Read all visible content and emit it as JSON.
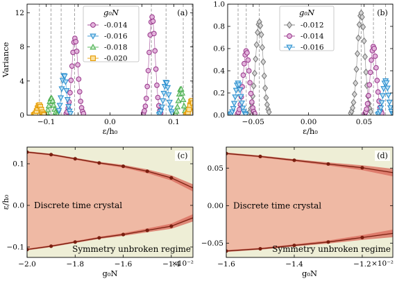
{
  "chart_data": [
    {
      "panel": "(a)",
      "type": "scatter",
      "xlabel": "ε/h₀",
      "ylabel": "Variance",
      "xlim": [
        -0.13,
        0.13
      ],
      "ylim": [
        0,
        13
      ],
      "xticks": [
        -0.1,
        -0.05,
        0.0,
        0.05,
        0.1
      ],
      "xticklabels": [
        "−0.1",
        "",
        "0.0",
        "",
        "0.1"
      ],
      "yticks": [
        0,
        4,
        8,
        12
      ],
      "yticklabels": [
        "0",
        "4",
        "8",
        "12"
      ],
      "legend": {
        "title": "g₀N",
        "placement": "top-center"
      },
      "vlines": [
        -0.1106,
        -0.0926,
        -0.0766,
        -0.0556,
        0.0648,
        0.0878,
        0.1148,
        0.1288
      ],
      "series": [
        {
          "name": "-0.014",
          "marker": "circle",
          "color": "#9b3d8e",
          "fill": "#e3b4dc",
          "center": 0.055,
          "amp": 9.0,
          "width": 0.0055,
          "mirror_center": 0.066,
          "mirror_amp": 11.5
        },
        {
          "name": "-0.016",
          "marker": "triangle-down",
          "color": "#2a8fcf",
          "fill": "#bfe2f6",
          "center": 0.072,
          "amp": 4.7,
          "width": 0.0045,
          "mirror_center": 0.088,
          "mirror_amp": 3.9
        },
        {
          "name": "-0.018",
          "marker": "triangle-up",
          "color": "#4caf50",
          "fill": "#c6ecc8",
          "center": 0.092,
          "amp": 2.0,
          "width": 0.004,
          "mirror_center": 0.111,
          "mirror_amp": 3.1
        },
        {
          "name": "-0.020",
          "marker": "square",
          "color": "#e69b00",
          "fill": "#fbe19f",
          "center": 0.111,
          "amp": 1.2,
          "width": 0.0035,
          "mirror_center": 0.128,
          "mirror_amp": 1.7
        }
      ],
      "label": "(a)"
    },
    {
      "panel": "(b)",
      "type": "scatter",
      "xlabel": "ε/h₀",
      "ylabel": "",
      "xlim": [
        -0.073,
        0.076
      ],
      "ylim": [
        0,
        1.0
      ],
      "xticks": [
        -0.05,
        0.0,
        0.05
      ],
      "xticklabels": [
        "−0.05",
        "0.00",
        "0.05"
      ],
      "yticks": [
        0,
        0.2,
        0.4,
        0.6,
        0.8,
        1.0
      ],
      "yticklabels": [
        "0.0",
        "0.2",
        "0.4",
        "0.6",
        "0.8",
        "1.0"
      ],
      "legend": {
        "title": "g₀N",
        "placement": "top-center"
      },
      "vlines": [
        -0.0636,
        -0.0562,
        -0.0444,
        0.0474,
        0.0585,
        0.0695
      ],
      "series": [
        {
          "name": "-0.012",
          "marker": "diamond",
          "color": "#7b7b7b",
          "fill": "#d6d6d6",
          "center": 0.0444,
          "amp": 0.84,
          "width": 0.0038,
          "mirror_center": 0.0474,
          "mirror_amp": 0.92
        },
        {
          "name": "-0.014",
          "marker": "circle",
          "color": "#9b3d8e",
          "fill": "#e3b4dc",
          "center": 0.0562,
          "amp": 0.58,
          "width": 0.0032,
          "mirror_center": 0.0585,
          "mirror_amp": 0.62
        },
        {
          "name": "-0.016",
          "marker": "triangle-down",
          "color": "#2a8fcf",
          "fill": "#bfe2f6",
          "center": 0.0636,
          "amp": 0.29,
          "width": 0.0028,
          "mirror_center": 0.0695,
          "mirror_amp": 0.31
        }
      ],
      "label": "(b)"
    },
    {
      "panel": "(c)",
      "type": "area",
      "xlabel": "g₀N",
      "ylabel": "ε/h₀",
      "xlim": [
        -0.02,
        -0.0131
      ],
      "ylim": [
        -0.125,
        0.14
      ],
      "xticks": [
        -0.02,
        -0.018,
        -0.016,
        -0.014
      ],
      "xticklabels": [
        "−2.0",
        "−1.8",
        "−1.6",
        "−1.4"
      ],
      "x_multiplier": "×10⁻²",
      "yticks": [
        -0.1,
        0.0,
        0.1
      ],
      "yticklabels": [
        "−0.1",
        "0.0",
        "0.1"
      ],
      "x": [
        -0.02,
        -0.019,
        -0.018,
        -0.017,
        -0.016,
        -0.015,
        -0.014
      ],
      "upper": [
        0.128,
        0.122,
        0.112,
        0.102,
        0.094,
        0.082,
        0.066
      ],
      "lower": [
        -0.106,
        -0.098,
        -0.088,
        -0.078,
        -0.07,
        -0.06,
        -0.05
      ],
      "upper_end": 0.042,
      "lower_end": -0.03,
      "band": 0.006,
      "regions": [
        "Discrete time crystal",
        "Symmetry unbroken regime"
      ],
      "label": "(c)"
    },
    {
      "panel": "(d)",
      "type": "area",
      "xlabel": "g₀N",
      "ylabel": "",
      "xlim": [
        -0.016,
        -0.0111
      ],
      "ylim": [
        -0.069,
        0.078
      ],
      "xticks": [
        -0.016,
        -0.014,
        -0.012
      ],
      "xticklabels": [
        "−1.6",
        "−1.4",
        "−1.2"
      ],
      "x_multiplier": "×10⁻²",
      "yticks": [
        -0.05,
        0.0,
        0.05
      ],
      "yticklabels": [
        "−0.05",
        "0.00",
        "0.05"
      ],
      "x": [
        -0.016,
        -0.015,
        -0.014,
        -0.013,
        -0.012
      ],
      "upper": [
        0.0695,
        0.0655,
        0.0605,
        0.0555,
        0.0505
      ],
      "lower": [
        -0.0605,
        -0.0575,
        -0.053,
        -0.0485,
        -0.0425
      ],
      "upper_end": 0.044,
      "lower_end": -0.037,
      "band": 0.0035,
      "regions": [
        "Discrete time crystal",
        "Symmetry unbroken regime"
      ],
      "label": "(d)"
    }
  ],
  "colors": {
    "dtc_fill": "#efb9a4",
    "unbroken_bg": "#eeeed6",
    "boundary_line": "#7a1e0f",
    "boundary_band": "#d8685a",
    "vline": "#8a8a8a"
  }
}
